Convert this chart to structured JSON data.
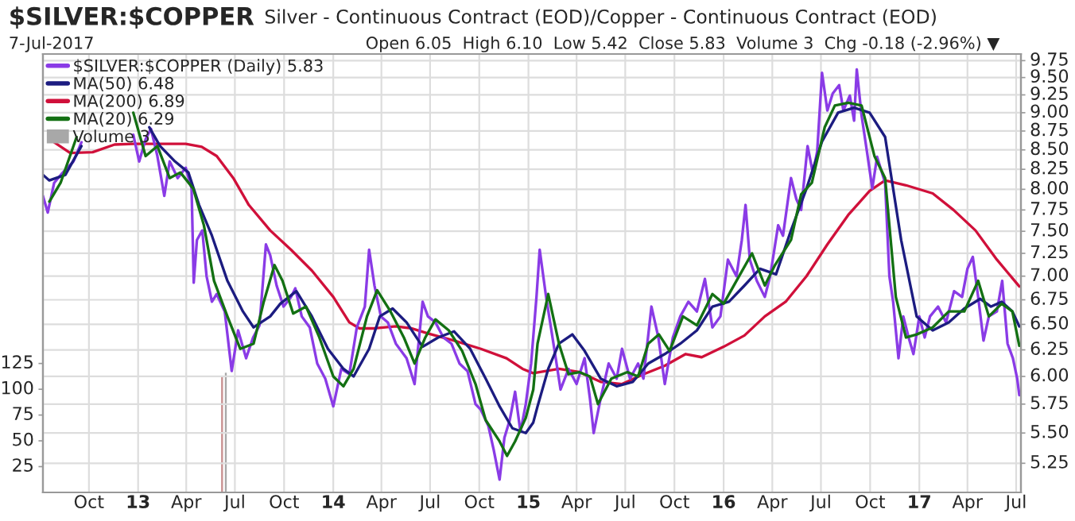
{
  "chart_data": {
    "type": "line",
    "title": "$SILVER:$COPPER",
    "subtitle": "Silver - Continuous Contract (EOD)/Copper - Continuous Contract (EOD)",
    "annotations": [
      "7-Jul-2017",
      "Open 6.05  High 6.10  Low 5.42  Close 5.83  Volume 3  Chg -0.18 (-2.96%) ▼"
    ],
    "log": true,
    "grid": true,
    "legend": "top left",
    "xlim": [
      "2012-07-07",
      "2017-07-10"
    ],
    "xticks": [
      {
        "value": "2012-10-01",
        "label": "Oct"
      },
      {
        "value": "2013-01-01",
        "label": "13"
      },
      {
        "value": "2013-04-01",
        "label": "Apr"
      },
      {
        "value": "2013-07-01",
        "label": "Jul"
      },
      {
        "value": "2013-10-01",
        "label": "Oct"
      },
      {
        "value": "2014-01-01",
        "label": "14"
      },
      {
        "value": "2014-04-01",
        "label": "Apr"
      },
      {
        "value": "2014-07-01",
        "label": "Jul"
      },
      {
        "value": "2014-10-01",
        "label": "Oct"
      },
      {
        "value": "2015-01-01",
        "label": "15"
      },
      {
        "value": "2015-04-01",
        "label": "Apr"
      },
      {
        "value": "2015-07-01",
        "label": "Jul"
      },
      {
        "value": "2015-10-01",
        "label": "Oct"
      },
      {
        "value": "2016-01-01",
        "label": "16"
      },
      {
        "value": "2016-04-01",
        "label": "Apr"
      },
      {
        "value": "2016-07-01",
        "label": "Jul"
      },
      {
        "value": "2016-10-01",
        "label": "Oct"
      },
      {
        "value": "2017-01-01",
        "label": "17"
      },
      {
        "value": "2017-04-01",
        "label": "Apr"
      },
      {
        "value": "2017-07-01",
        "label": "Jul"
      }
    ],
    "ylim": [
      5.02,
      9.85
    ],
    "yticks": [
      5.25,
      {
        "value": 5.5,
        "label": "5.50"
      },
      5.75,
      {
        "value": 6.0,
        "label": "6.00"
      },
      6.25,
      {
        "value": 6.5,
        "label": "6.50"
      },
      6.75,
      {
        "value": 7.0,
        "label": "7.00"
      },
      7.25,
      {
        "value": 7.5,
        "label": "7.50"
      },
      7.75,
      {
        "value": 8.0,
        "label": "8.00"
      },
      8.25,
      {
        "value": 8.5,
        "label": "8.50"
      },
      8.75,
      {
        "value": 9.0,
        "label": "9.00"
      },
      9.25,
      {
        "value": 9.5,
        "label": "9.50"
      },
      9.75
    ],
    "y2lim": [
      0,
      425
    ],
    "y2ticks": [
      25,
      50,
      75,
      100,
      125
    ],
    "series": [
      {
        "name": "Volume 3",
        "type": "bar",
        "axis": "y2",
        "colors": [
          "#c89090",
          "#a8a8a8"
        ],
        "x": [
          "2013-06-07",
          "2013-06-14"
        ],
        "values": [
          112,
          116
        ]
      },
      {
        "name": "MA(200) 6.89",
        "color": "#d0103a",
        "x": [
          "2012-07-28",
          "2012-08-27",
          "2012-10-08",
          "2012-11-18",
          "2012-12-23",
          "2013-02-20",
          "2013-03-31",
          "2013-04-30",
          "2013-05-28",
          "2013-06-28",
          "2013-07-27",
          "2013-09-05",
          "2013-10-14",
          "2013-11-22",
          "2014-01-01",
          "2014-01-31",
          "2014-02-19",
          "2014-03-19",
          "2014-04-28",
          "2014-05-27",
          "2014-06-27",
          "2014-08-15",
          "2014-10-04",
          "2014-11-21",
          "2014-12-21",
          "2015-01-10",
          "2015-02-27",
          "2015-04-06",
          "2015-05-16",
          "2015-06-25",
          "2015-08-04",
          "2015-09-13",
          "2015-10-22",
          "2015-11-21",
          "2016-01-01",
          "2016-02-09",
          "2016-03-18",
          "2016-04-26",
          "2016-06-04",
          "2016-07-13",
          "2016-08-21",
          "2016-09-30",
          "2016-10-29",
          "2016-12-07",
          "2017-01-26",
          "2017-03-06",
          "2017-04-16",
          "2017-05-26",
          "2017-07-07"
        ],
        "values": [
          8.6,
          8.46,
          8.47,
          8.57,
          8.58,
          8.58,
          8.58,
          8.54,
          8.42,
          8.14,
          7.81,
          7.51,
          7.29,
          7.06,
          6.78,
          6.52,
          6.46,
          6.46,
          6.48,
          6.46,
          6.41,
          6.34,
          6.26,
          6.17,
          6.07,
          6.03,
          6.07,
          6.04,
          5.95,
          5.93,
          6.02,
          6.1,
          6.21,
          6.18,
          6.28,
          6.39,
          6.58,
          6.73,
          7.0,
          7.35,
          7.69,
          7.98,
          8.11,
          8.05,
          7.95,
          7.75,
          7.51,
          7.18,
          6.89
        ]
      },
      {
        "name": "$SILVER:$COPPER (Daily) 5.83",
        "color": "#8a3be6",
        "x": [
          "2012-07-07",
          "2012-07-16",
          "2012-07-28",
          "2012-08-12",
          "2012-09-02",
          "2012-09-17",
          "2012-11-01",
          "2012-12-23",
          "2013-01-03",
          "2013-01-15",
          "2013-01-25",
          "2013-02-06",
          "2013-02-19",
          "2013-03-01",
          "2013-03-16",
          "2013-03-31",
          "2013-04-11",
          "2013-04-15",
          "2013-04-21",
          "2013-05-01",
          "2013-05-09",
          "2013-05-19",
          "2013-05-28",
          "2013-06-12",
          "2013-06-25",
          "2013-07-07",
          "2013-07-22",
          "2013-08-04",
          "2013-08-16",
          "2013-08-28",
          "2013-09-05",
          "2013-09-17",
          "2013-09-30",
          "2013-10-14",
          "2013-10-22",
          "2013-11-03",
          "2013-11-18",
          "2013-12-02",
          "2013-12-17",
          "2014-01-01",
          "2014-01-16",
          "2014-01-31",
          "2014-02-14",
          "2014-03-01",
          "2014-03-09",
          "2014-03-19",
          "2014-03-31",
          "2014-04-13",
          "2014-04-28",
          "2014-05-18",
          "2014-06-02",
          "2014-06-17",
          "2014-06-27",
          "2014-07-11",
          "2014-07-26",
          "2014-08-10",
          "2014-08-25",
          "2014-09-09",
          "2014-09-24",
          "2014-10-04",
          "2014-10-18",
          "2014-10-28",
          "2014-11-08",
          "2014-11-17",
          "2014-11-27",
          "2014-12-07",
          "2014-12-17",
          "2014-12-27",
          "2015-01-06",
          "2015-01-16",
          "2015-01-22",
          "2015-02-03",
          "2015-02-12",
          "2015-02-21",
          "2015-03-02",
          "2015-03-17",
          "2015-04-01",
          "2015-04-16",
          "2015-04-26",
          "2015-05-03",
          "2015-05-16",
          "2015-05-31",
          "2015-06-15",
          "2015-06-25",
          "2015-07-10",
          "2015-07-25",
          "2015-08-04",
          "2015-08-19",
          "2015-09-01",
          "2015-09-13",
          "2015-09-28",
          "2015-10-12",
          "2015-10-27",
          "2015-11-12",
          "2015-11-27",
          "2015-12-11",
          "2015-12-26",
          "2016-01-09",
          "2016-01-25",
          "2016-02-04",
          "2016-02-11",
          "2016-02-19",
          "2016-03-03",
          "2016-03-18",
          "2016-03-28",
          "2016-04-12",
          "2016-04-21",
          "2016-05-06",
          "2016-05-16",
          "2016-05-25",
          "2016-06-06",
          "2016-06-16",
          "2016-06-24",
          "2016-07-03",
          "2016-07-13",
          "2016-07-23",
          "2016-08-04",
          "2016-08-12",
          "2016-08-24",
          "2016-09-01",
          "2016-09-06",
          "2016-09-15",
          "2016-09-25",
          "2016-10-05",
          "2016-10-14",
          "2016-10-29",
          "2016-11-06",
          "2016-11-13",
          "2016-11-23",
          "2016-12-02",
          "2016-12-12",
          "2016-12-21",
          "2017-01-01",
          "2017-01-11",
          "2017-01-21",
          "2017-02-05",
          "2017-02-20",
          "2017-03-07",
          "2017-03-22",
          "2017-04-01",
          "2017-04-11",
          "2017-04-21",
          "2017-05-01",
          "2017-05-11",
          "2017-05-26",
          "2017-06-05",
          "2017-06-15",
          "2017-06-25",
          "2017-07-03",
          "2017-07-07"
        ],
        "values": [
          7.92,
          7.72,
          8.08,
          8.2,
          8.35,
          8.6,
          null,
          8.7,
          8.35,
          8.64,
          8.78,
          8.42,
          7.92,
          8.35,
          8.14,
          8.27,
          8.01,
          6.93,
          7.4,
          7.51,
          7.0,
          6.73,
          6.81,
          6.63,
          6.05,
          6.44,
          6.17,
          6.37,
          6.49,
          7.35,
          7.23,
          6.9,
          6.68,
          6.78,
          6.87,
          6.58,
          6.47,
          6.12,
          5.98,
          5.73,
          6.07,
          6.02,
          6.47,
          6.68,
          7.29,
          6.9,
          6.58,
          6.52,
          6.31,
          6.17,
          5.93,
          6.73,
          6.58,
          6.52,
          6.37,
          6.31,
          6.12,
          6.05,
          5.75,
          5.7,
          5.56,
          5.36,
          5.12,
          5.46,
          5.61,
          5.86,
          5.51,
          5.75,
          6.12,
          6.78,
          7.29,
          6.78,
          6.47,
          6.17,
          5.88,
          6.07,
          5.93,
          6.17,
          5.8,
          5.5,
          5.8,
          6.12,
          5.98,
          6.26,
          5.98,
          6.12,
          5.98,
          6.68,
          6.37,
          5.93,
          6.37,
          6.58,
          6.73,
          6.63,
          6.97,
          6.47,
          6.58,
          7.18,
          7.0,
          7.4,
          7.81,
          7.18,
          6.95,
          6.78,
          7.0,
          7.57,
          7.45,
          8.14,
          7.88,
          7.75,
          8.55,
          8.2,
          8.48,
          9.57,
          9.03,
          9.27,
          9.39,
          9.03,
          9.24,
          8.89,
          9.62,
          8.96,
          8.48,
          8.01,
          8.41,
          8.08,
          7.0,
          6.73,
          6.17,
          6.58,
          6.37,
          6.21,
          6.58,
          6.37,
          6.58,
          6.68,
          6.52,
          6.84,
          6.78,
          7.08,
          7.21,
          6.78,
          6.34,
          6.58,
          6.63,
          6.95,
          6.31,
          6.17,
          5.98,
          5.83
        ]
      },
      {
        "name": "MA(50) 6.48",
        "color": "#1c1c80",
        "x": [
          "2012-07-07",
          "2012-07-19",
          "2012-08-18",
          "2012-09-17",
          "2012-11-01",
          "2013-01-22",
          "2013-02-11",
          "2013-03-11",
          "2013-04-05",
          "2013-04-25",
          "2013-05-19",
          "2013-06-17",
          "2013-07-16",
          "2013-08-05",
          "2013-09-05",
          "2013-09-24",
          "2013-10-24",
          "2013-11-22",
          "2013-12-22",
          "2014-01-20",
          "2014-02-08",
          "2014-03-09",
          "2014-03-29",
          "2014-04-22",
          "2014-05-18",
          "2014-06-17",
          "2014-07-16",
          "2014-08-15",
          "2014-09-14",
          "2014-10-13",
          "2014-11-08",
          "2014-12-02",
          "2014-12-27",
          "2015-01-10",
          "2015-01-18",
          "2015-02-07",
          "2015-02-27",
          "2015-03-24",
          "2015-04-16",
          "2015-05-16",
          "2015-06-15",
          "2015-07-15",
          "2015-08-13",
          "2015-09-13",
          "2015-10-12",
          "2015-11-12",
          "2015-12-11",
          "2016-01-11",
          "2016-02-09",
          "2016-03-09",
          "2016-04-08",
          "2016-05-06",
          "2016-06-04",
          "2016-07-03",
          "2016-08-02",
          "2016-09-01",
          "2016-09-30",
          "2016-10-29",
          "2016-11-28",
          "2016-12-27",
          "2017-01-26",
          "2017-02-25",
          "2017-03-26",
          "2017-04-25",
          "2017-05-15",
          "2017-06-04",
          "2017-06-24",
          "2017-07-07"
        ],
        "values": [
          8.18,
          8.11,
          8.18,
          8.55,
          null,
          8.8,
          8.55,
          8.35,
          8.21,
          7.81,
          7.45,
          6.95,
          6.63,
          6.47,
          6.58,
          6.71,
          6.84,
          6.58,
          6.26,
          6.07,
          6.0,
          6.26,
          6.58,
          6.66,
          6.52,
          6.28,
          6.37,
          6.43,
          6.26,
          5.98,
          5.73,
          5.54,
          5.5,
          5.59,
          5.73,
          6.07,
          6.31,
          6.4,
          6.24,
          5.98,
          5.91,
          5.95,
          6.12,
          6.21,
          6.31,
          6.44,
          6.68,
          6.73,
          6.9,
          7.08,
          7.02,
          7.51,
          8.01,
          8.61,
          9.0,
          9.07,
          9.0,
          8.67,
          7.4,
          6.58,
          6.44,
          6.52,
          6.66,
          6.76,
          6.68,
          6.73,
          6.63,
          6.48
        ]
      },
      {
        "name": "MA(20) 6.29",
        "color": "#137013",
        "x": [
          "2012-07-19",
          "2012-08-09",
          "2012-09-08",
          "2012-11-01",
          "2012-12-23",
          "2013-01-15",
          "2013-02-06",
          "2013-03-01",
          "2013-03-21",
          "2013-04-14",
          "2013-05-04",
          "2013-05-23",
          "2013-06-17",
          "2013-07-11",
          "2013-08-05",
          "2013-08-24",
          "2013-09-13",
          "2013-09-28",
          "2013-10-18",
          "2013-11-11",
          "2013-12-06",
          "2014-01-01",
          "2014-01-20",
          "2014-02-08",
          "2014-03-05",
          "2014-03-24",
          "2014-04-18",
          "2014-05-13",
          "2014-06-02",
          "2014-06-22",
          "2014-07-11",
          "2014-08-05",
          "2014-08-30",
          "2014-09-24",
          "2014-10-13",
          "2014-11-08",
          "2014-11-22",
          "2014-12-07",
          "2014-12-27",
          "2015-01-10",
          "2015-01-18",
          "2015-02-07",
          "2015-02-27",
          "2015-03-17",
          "2015-04-06",
          "2015-04-26",
          "2015-05-11",
          "2015-06-05",
          "2015-07-05",
          "2015-07-25",
          "2015-08-13",
          "2015-09-02",
          "2015-09-22",
          "2015-10-17",
          "2015-11-12",
          "2015-12-11",
          "2016-01-01",
          "2016-01-25",
          "2016-02-23",
          "2016-03-18",
          "2016-04-06",
          "2016-05-06",
          "2016-05-25",
          "2016-06-14",
          "2016-07-08",
          "2016-07-27",
          "2016-08-21",
          "2016-09-15",
          "2016-10-09",
          "2016-10-29",
          "2016-11-18",
          "2016-12-07",
          "2016-12-27",
          "2017-01-26",
          "2017-02-25",
          "2017-03-26",
          "2017-04-21",
          "2017-05-11",
          "2017-06-04",
          "2017-06-24",
          "2017-07-07"
        ],
        "values": [
          7.85,
          8.08,
          8.67,
          null,
          9.0,
          8.42,
          8.55,
          8.14,
          8.21,
          8.01,
          7.57,
          6.95,
          6.58,
          6.26,
          6.31,
          6.73,
          7.12,
          6.95,
          6.61,
          6.68,
          6.37,
          6.0,
          5.91,
          6.07,
          6.58,
          6.85,
          6.63,
          6.37,
          6.12,
          6.37,
          6.55,
          6.44,
          6.24,
          5.93,
          5.61,
          5.43,
          5.31,
          5.43,
          5.63,
          5.88,
          6.31,
          6.81,
          6.31,
          6.02,
          6.04,
          6.0,
          5.75,
          5.98,
          6.04,
          6.0,
          6.31,
          6.4,
          6.24,
          6.58,
          6.49,
          6.81,
          6.71,
          6.95,
          7.25,
          6.9,
          7.12,
          7.4,
          7.94,
          8.08,
          8.8,
          9.1,
          9.14,
          9.1,
          8.42,
          8.14,
          6.78,
          6.37,
          6.4,
          6.47,
          6.63,
          6.63,
          6.95,
          6.58,
          6.71,
          6.63,
          6.29
        ]
      }
    ]
  }
}
